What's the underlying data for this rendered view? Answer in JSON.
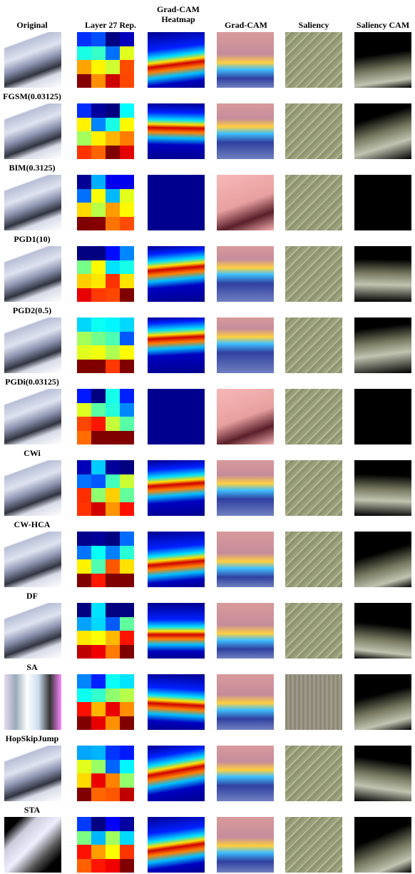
{
  "columns": [
    "Original",
    "Layer 27 Rep.",
    "Grad-CAM Heatmap",
    "Grad-CAM",
    "Saliency",
    "Saliency CAM"
  ],
  "attacks": [
    "FGSM(0.03125)",
    "BIM(0.3125)",
    "PGD1(10)",
    "PGD2(0.5)",
    "PGDi(0.03125)",
    "CWi",
    "CW-HCA",
    "DF",
    "SA",
    "HopSkipJump",
    "STA"
  ]
}
